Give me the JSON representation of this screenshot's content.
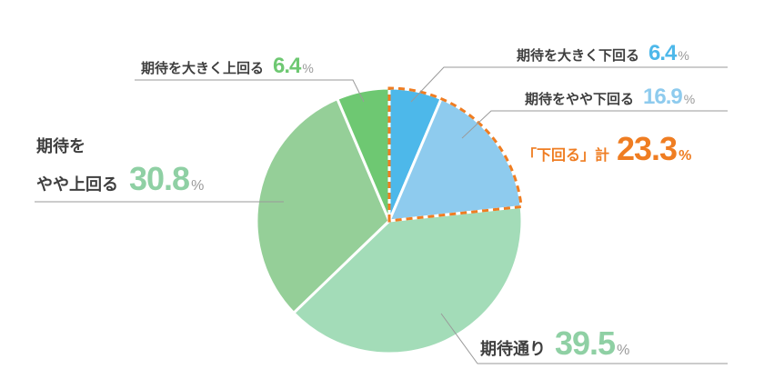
{
  "chart_data": {
    "type": "pie",
    "slices": [
      {
        "label": "期待を大きく下回る",
        "value": 6.4,
        "color": "#4db8ea"
      },
      {
        "label": "期待をやや下回る",
        "value": 16.9,
        "color": "#8ecbee"
      },
      {
        "label": "期待通り",
        "value": 39.5,
        "color": "#a3dcb8"
      },
      {
        "label": "期待をやや上回る",
        "value": 30.8,
        "color": "#95cf98"
      },
      {
        "label": "期待を大きく上回る",
        "value": 6.4,
        "color": "#6ec872"
      }
    ],
    "highlight": {
      "label": "「下回る」計",
      "value": 23.3,
      "color": "#ef7d22"
    },
    "unit": "%",
    "start_angle_deg": 0,
    "direction": "clockwise"
  },
  "labels": {
    "s1_cat": "期待を大きく下回る",
    "s1_val": "6.4",
    "s2_cat": "期待をやや下回る",
    "s2_val": "16.9",
    "total_cat": "「下回る」計",
    "total_val": "23.3",
    "s3_cat": "期待通り",
    "s3_val": "39.5",
    "s4_cat_line1": "期待を",
    "s4_cat_line2": "やや上回る",
    "s4_val": "30.8",
    "s5_cat": "期待を大きく上回る",
    "s5_val": "6.4",
    "unit": "%"
  },
  "colors": {
    "blue_text": "#4db8ea",
    "light_blue_text": "#8ecbee",
    "green_text": "#8fd0a4",
    "dark_green_text": "#6ec872",
    "orange": "#ef7d22",
    "leader_line": "#9a9a9a"
  }
}
